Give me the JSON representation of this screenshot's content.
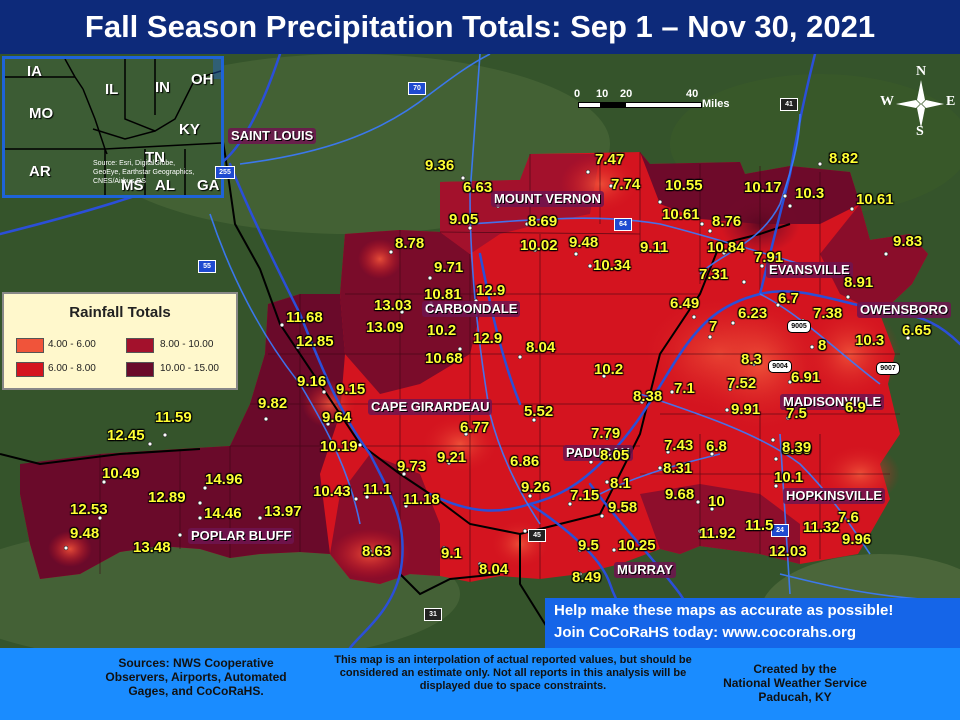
{
  "title": "Fall Season Precipitation Totals: Sep 1 – Nov 30, 2021",
  "inset": {
    "states": [
      "IA",
      "IL",
      "IN",
      "OH",
      "MO",
      "KY",
      "AR",
      "TN",
      "MS",
      "AL",
      "GA"
    ],
    "source_text": "Source: Esri, DigitalGlobe, GeoEye, Earthstar Geographics, CNES/Airbus DS"
  },
  "legend": {
    "title": "Rainfall Totals",
    "items": [
      {
        "label": "4.00 - 6.00",
        "color": "#f0543a"
      },
      {
        "label": "8.00 - 10.00",
        "color": "#a3112c"
      },
      {
        "label": "6.00 - 8.00",
        "color": "#d4141f"
      },
      {
        "label": "10.00 - 15.00",
        "color": "#6a0a2a"
      }
    ]
  },
  "scale": {
    "ticks": [
      "0",
      "10",
      "20",
      "40"
    ],
    "unit": "Miles"
  },
  "compass": {
    "n": "N",
    "s": "S",
    "e": "E",
    "w": "W"
  },
  "cities": [
    "SAINT LOUIS",
    "MOUNT VERNON",
    "CARBONDALE",
    "CAPE GIRARDEAU",
    "PADUCAH",
    "POPLAR BLUFF",
    "MURRAY",
    "HOPKINSVILLE",
    "MADISONVILLE",
    "EVANSVILLE",
    "OWENSBORO"
  ],
  "highway_shields": [
    "70",
    "64",
    "41",
    "55",
    "255",
    "9005",
    "9004",
    "9007",
    "24",
    "45",
    "31"
  ],
  "observations": [
    "7.47",
    "9.36",
    "6.63",
    "7.74",
    "10.55",
    "8.82",
    "10.17",
    "10.3",
    "10.61",
    "9.05",
    "8.69",
    "10.61",
    "8.76",
    "10.02",
    "9.48",
    "9.11",
    "10.84",
    "8.78",
    "10.34",
    "9.83",
    "9.71",
    "7.31",
    "7.91",
    "8.91",
    "10.81",
    "12.9",
    "13.03",
    "6.49",
    "6.7",
    "11.68",
    "13.09",
    "10.2",
    "7.38",
    "6.23",
    "12.85",
    "7",
    "12.9",
    "10.68",
    "8.04",
    "8.3",
    "10.3",
    "6.65",
    "8",
    "10.2",
    "9.16",
    "9.15",
    "7.1",
    "6.91",
    "7.52",
    "9.82",
    "5.52",
    "8.38",
    "9.91",
    "7.5",
    "6.9",
    "9.64",
    "11.59",
    "6.77",
    "7.79",
    "8.39",
    "12.45",
    "10.19",
    "9.21",
    "6.86",
    "8.05",
    "7.43",
    "6.8",
    "8.39",
    "9.73",
    "8.31",
    "10.49",
    "14.96",
    "8.1",
    "10.1",
    "10.43",
    "11.1",
    "9.26",
    "12.89",
    "11.18",
    "9.68",
    "10",
    "7.15",
    "12.53",
    "14.46",
    "13.97",
    "9.58",
    "7.6",
    "11.92",
    "11.5",
    "11.32",
    "9.48",
    "13.48",
    "8.63",
    "9.1",
    "9.5",
    "10.25",
    "12.03",
    "9.96",
    "8.04",
    "8.49"
  ],
  "promo": {
    "line1": "Help make these maps as accurate as possible!",
    "line2": "Join CoCoRaHS today: www.cocorahs.org"
  },
  "footer": {
    "sources": "Sources: NWS Cooperative Observers, Airports, Automated Gages, and CoCoRaHS.",
    "note": "This map is an interpolation of actual reported values, but should be considered an estimate only. Not all reports in this analysis will be displayed due to space constraints.",
    "credit_l1": "Created by the",
    "credit_l2": "National Weather Service",
    "credit_l3": "Paducah, KY"
  }
}
